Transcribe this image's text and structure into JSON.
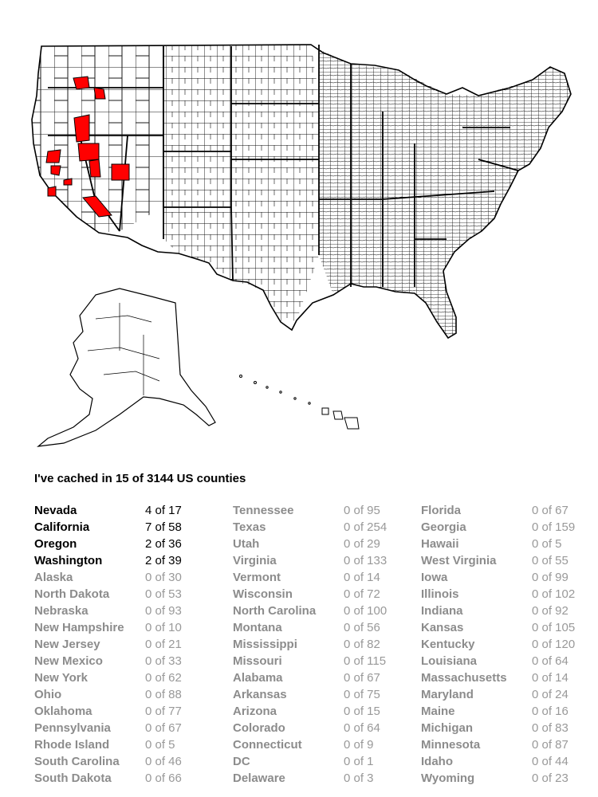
{
  "map": {
    "fill_visited": "#ff0000",
    "fill_unvisited": "#ffffff",
    "stroke": "#000000"
  },
  "summary": "I've cached in 15 of 3144 US counties",
  "columns": [
    [
      {
        "state": "Nevada",
        "count": "4 of 17",
        "visited": true
      },
      {
        "state": "California",
        "count": "7 of 58",
        "visited": true
      },
      {
        "state": "Oregon",
        "count": "2 of 36",
        "visited": true
      },
      {
        "state": "Washington",
        "count": "2 of 39",
        "visited": true
      },
      {
        "state": "Alaska",
        "count": "0 of 30",
        "visited": false
      },
      {
        "state": "North Dakota",
        "count": "0 of 53",
        "visited": false
      },
      {
        "state": "Nebraska",
        "count": "0 of 93",
        "visited": false
      },
      {
        "state": "New Hampshire",
        "count": "0 of 10",
        "visited": false
      },
      {
        "state": "New Jersey",
        "count": "0 of 21",
        "visited": false
      },
      {
        "state": "New Mexico",
        "count": "0 of 33",
        "visited": false
      },
      {
        "state": "New York",
        "count": "0 of 62",
        "visited": false
      },
      {
        "state": "Ohio",
        "count": "0 of 88",
        "visited": false
      },
      {
        "state": "Oklahoma",
        "count": "0 of 77",
        "visited": false
      },
      {
        "state": "Pennsylvania",
        "count": "0 of 67",
        "visited": false
      },
      {
        "state": "Rhode Island",
        "count": "0 of 5",
        "visited": false
      },
      {
        "state": "South Carolina",
        "count": "0 of 46",
        "visited": false
      },
      {
        "state": "South Dakota",
        "count": "0 of 66",
        "visited": false
      }
    ],
    [
      {
        "state": "Tennessee",
        "count": "0 of 95",
        "visited": false
      },
      {
        "state": "Texas",
        "count": "0 of 254",
        "visited": false
      },
      {
        "state": "Utah",
        "count": "0 of 29",
        "visited": false
      },
      {
        "state": "Virginia",
        "count": "0 of 133",
        "visited": false
      },
      {
        "state": "Vermont",
        "count": "0 of 14",
        "visited": false
      },
      {
        "state": "Wisconsin",
        "count": "0 of 72",
        "visited": false
      },
      {
        "state": "North Carolina",
        "count": "0 of 100",
        "visited": false
      },
      {
        "state": "Montana",
        "count": "0 of 56",
        "visited": false
      },
      {
        "state": "Mississippi",
        "count": "0 of 82",
        "visited": false
      },
      {
        "state": "Missouri",
        "count": "0 of 115",
        "visited": false
      },
      {
        "state": "Alabama",
        "count": "0 of 67",
        "visited": false
      },
      {
        "state": "Arkansas",
        "count": "0 of 75",
        "visited": false
      },
      {
        "state": "Arizona",
        "count": "0 of 15",
        "visited": false
      },
      {
        "state": "Colorado",
        "count": "0 of 64",
        "visited": false
      },
      {
        "state": "Connecticut",
        "count": "0 of 9",
        "visited": false
      },
      {
        "state": "DC",
        "count": "0 of 1",
        "visited": false
      },
      {
        "state": "Delaware",
        "count": "0 of 3",
        "visited": false
      }
    ],
    [
      {
        "state": "Florida",
        "count": "0 of 67",
        "visited": false
      },
      {
        "state": "Georgia",
        "count": "0 of 159",
        "visited": false
      },
      {
        "state": "Hawaii",
        "count": "0 of 5",
        "visited": false
      },
      {
        "state": "West Virginia",
        "count": "0 of 55",
        "visited": false
      },
      {
        "state": "Iowa",
        "count": "0 of 99",
        "visited": false
      },
      {
        "state": "Illinois",
        "count": "0 of 102",
        "visited": false
      },
      {
        "state": "Indiana",
        "count": "0 of 92",
        "visited": false
      },
      {
        "state": "Kansas",
        "count": "0 of 105",
        "visited": false
      },
      {
        "state": "Kentucky",
        "count": "0 of 120",
        "visited": false
      },
      {
        "state": "Louisiana",
        "count": "0 of 64",
        "visited": false
      },
      {
        "state": "Massachusetts",
        "count": "0 of 14",
        "visited": false
      },
      {
        "state": "Maryland",
        "count": "0 of 24",
        "visited": false
      },
      {
        "state": "Maine",
        "count": "0 of 16",
        "visited": false
      },
      {
        "state": "Michigan",
        "count": "0 of 83",
        "visited": false
      },
      {
        "state": "Minnesota",
        "count": "0 of 87",
        "visited": false
      },
      {
        "state": "Idaho",
        "count": "0 of 44",
        "visited": false
      },
      {
        "state": "Wyoming",
        "count": "0 of 23",
        "visited": false
      }
    ]
  ]
}
